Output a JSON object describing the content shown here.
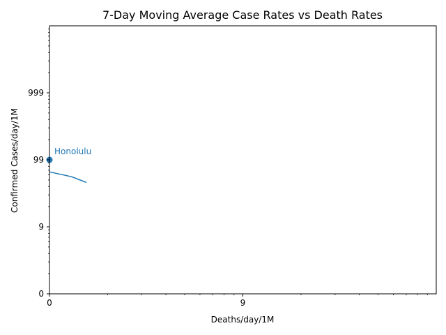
{
  "chart_data": {
    "type": "line",
    "title": "7-Day Moving Average Case Rates vs Death Rates",
    "xlabel": "Deaths/day/1M",
    "ylabel": "Confirmed Cases/day/1M",
    "x_scale": "log1p",
    "y_scale": "log1p",
    "xlim": [
      0,
      99
    ],
    "ylim": [
      0,
      9999
    ],
    "x_ticks": [
      {
        "value": 0,
        "label": "0"
      },
      {
        "value": 9,
        "label": "9"
      }
    ],
    "y_ticks": [
      {
        "value": 0,
        "label": "0"
      },
      {
        "value": 9,
        "label": "9"
      },
      {
        "value": 99,
        "label": "99"
      },
      {
        "value": 999,
        "label": "999"
      }
    ],
    "x_minor_ticks": [
      1,
      2,
      3,
      4,
      5,
      6,
      7,
      8,
      19,
      29,
      39,
      49,
      59,
      69,
      79,
      89
    ],
    "y_minor_ticks": [
      1,
      2,
      3,
      4,
      5,
      6,
      7,
      8,
      19,
      29,
      39,
      49,
      59,
      69,
      79,
      89,
      199,
      299,
      399,
      499,
      599,
      699,
      799,
      899,
      1999,
      2999,
      3999,
      4999,
      5999,
      6999,
      7999,
      8999
    ],
    "grid": false,
    "series": [
      {
        "name": "Honolulu",
        "color": "#1f77b4",
        "points": [
          {
            "x": 0,
            "y": 65
          },
          {
            "x": 0.3,
            "y": 55
          },
          {
            "x": 0.55,
            "y": 45
          }
        ],
        "marker": {
          "x": 0,
          "y": 99
        },
        "annotation": "Honolulu"
      }
    ]
  }
}
